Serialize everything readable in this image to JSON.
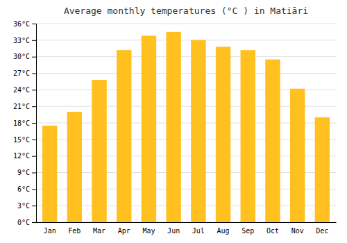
{
  "chart_data": {
    "type": "bar",
    "title": "Average monthly temperatures (°C ) in Matiāri",
    "categories": [
      "Jan",
      "Feb",
      "Mar",
      "Apr",
      "May",
      "Jun",
      "Jul",
      "Aug",
      "Sep",
      "Oct",
      "Nov",
      "Dec"
    ],
    "values": [
      17.5,
      20.0,
      25.8,
      31.2,
      33.8,
      34.5,
      33.0,
      31.8,
      31.2,
      29.5,
      24.2,
      19.0
    ],
    "color": "#FFC020",
    "ylim": [
      0,
      36
    ],
    "yticks": [
      {
        "value": 0,
        "label": "0°C"
      },
      {
        "value": 3,
        "label": "3°C"
      },
      {
        "value": 6,
        "label": "6°C"
      },
      {
        "value": 9,
        "label": "9°C"
      },
      {
        "value": 12,
        "label": "12°C"
      },
      {
        "value": 15,
        "label": "15°C"
      },
      {
        "value": 18,
        "label": "18°C"
      },
      {
        "value": 21,
        "label": "21°C"
      },
      {
        "value": 24,
        "label": "24°C"
      },
      {
        "value": 27,
        "label": "27°C"
      },
      {
        "value": 30,
        "label": "30°C"
      },
      {
        "value": 33,
        "label": "33°C"
      },
      {
        "value": 36,
        "label": "36°C"
      }
    ],
    "grid": true
  }
}
